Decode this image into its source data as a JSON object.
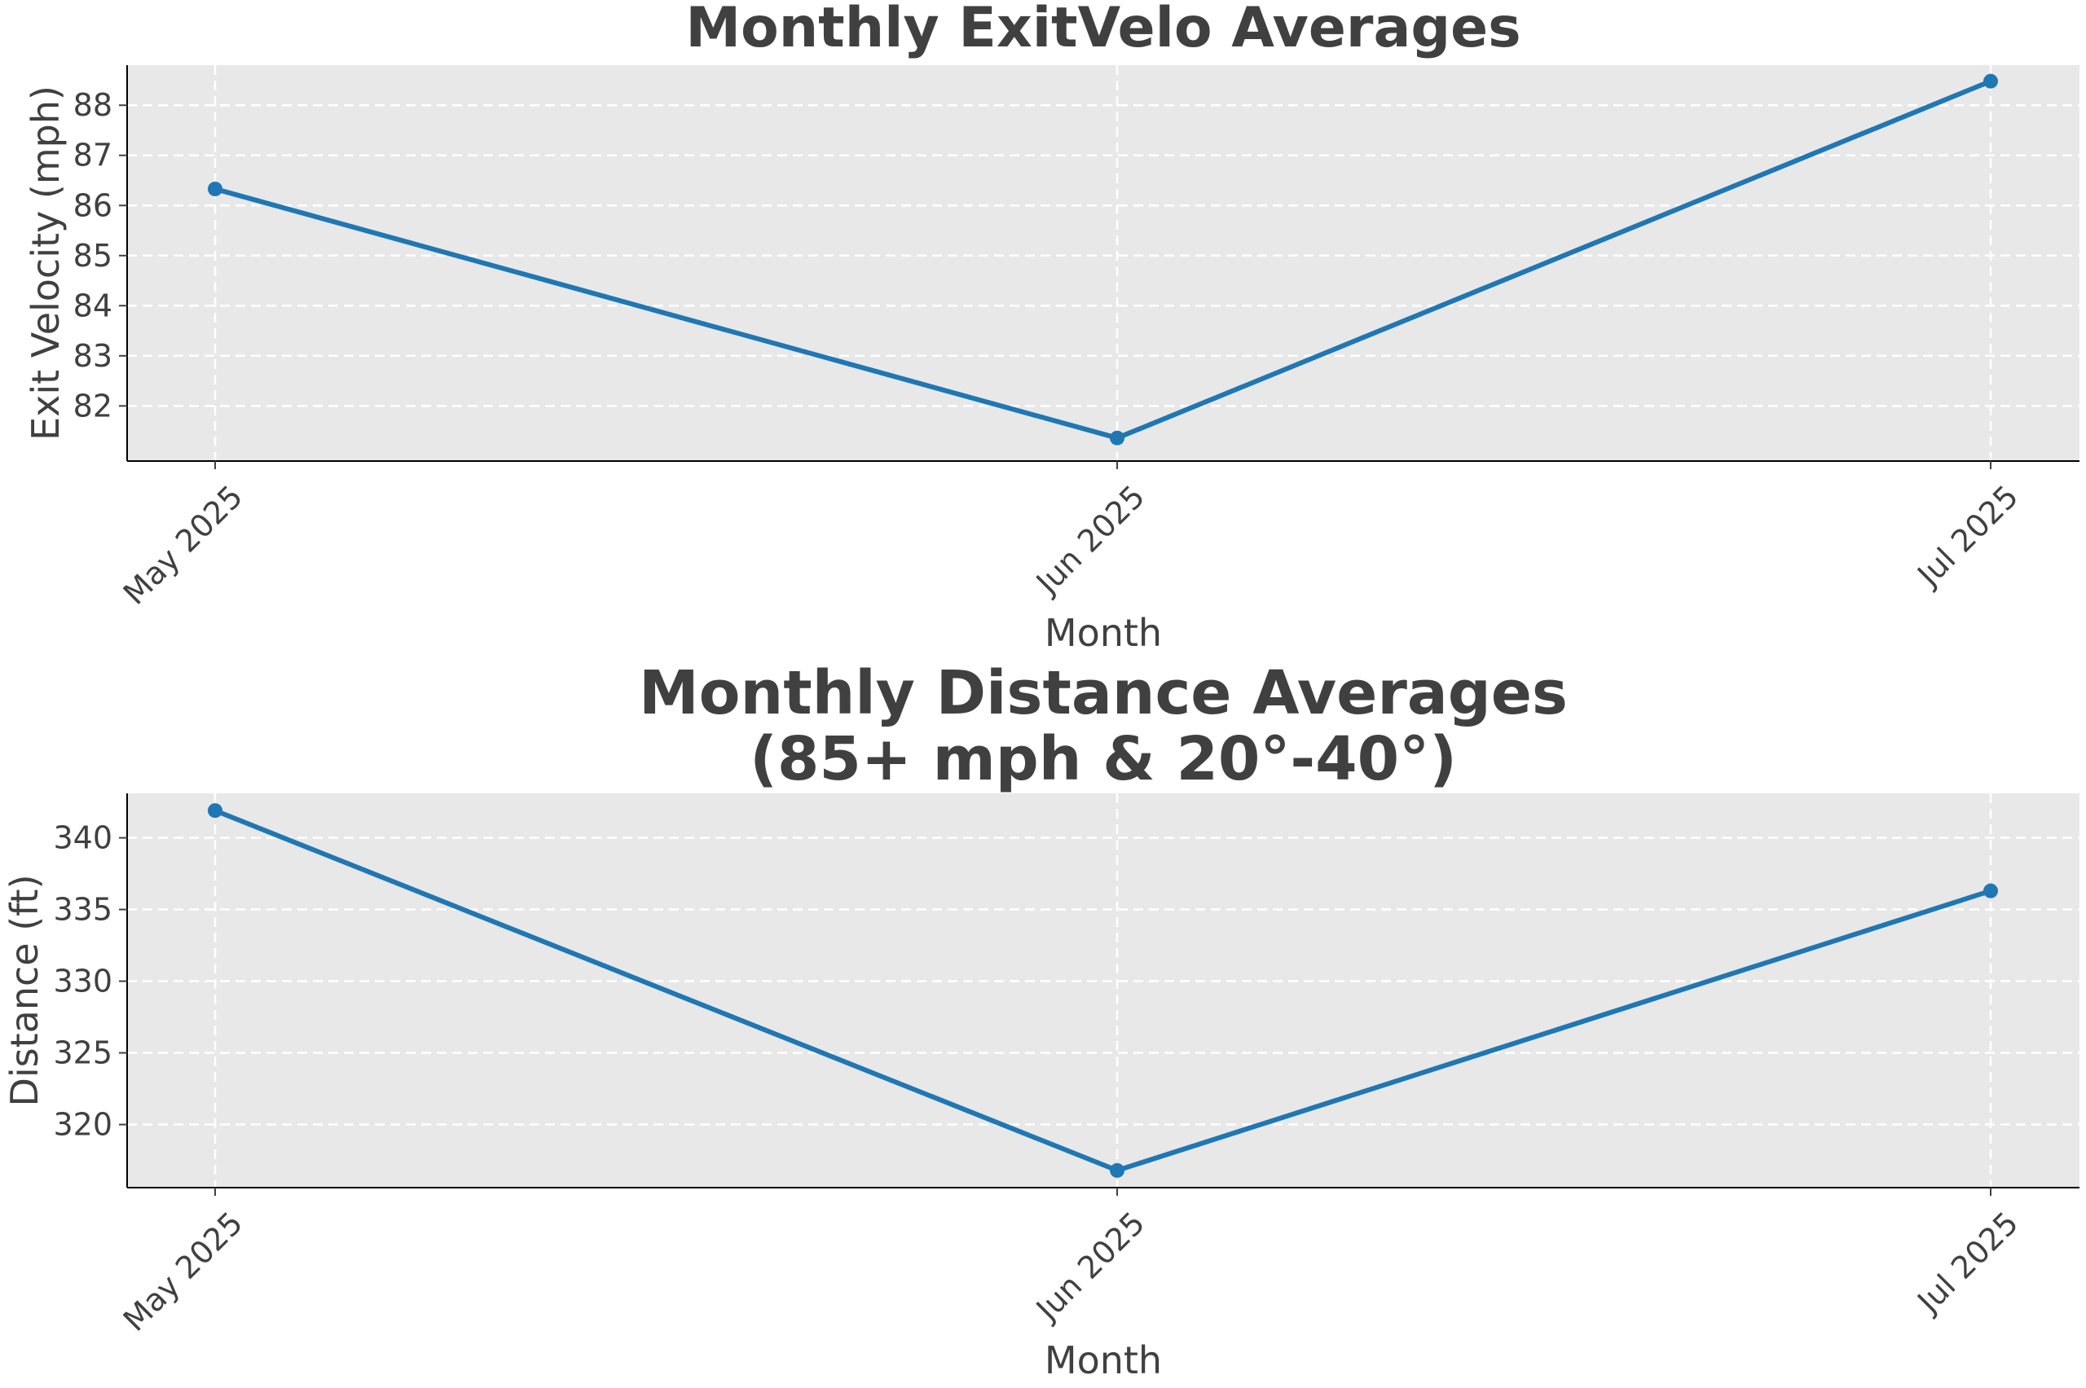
{
  "chart_data": [
    {
      "type": "line",
      "title_lines": [
        "Monthly ExitVelo Averages"
      ],
      "xlabel": "Month",
      "ylabel": "Exit Velocity (mph)",
      "categories": [
        "May 2025",
        "Jun 2025",
        "Jul 2025"
      ],
      "series": [
        {
          "values": [
            86.33,
            81.36,
            88.48
          ]
        }
      ],
      "yticks": [
        82,
        83,
        84,
        85,
        86,
        87,
        88
      ],
      "ylim": [
        80.9,
        88.8
      ],
      "grid": true,
      "colors": {
        "line": "#1f77b4",
        "background": "#e8e8e8",
        "grid": "#ffffff"
      }
    },
    {
      "type": "line",
      "title_lines": [
        "Monthly Distance Averages",
        "(85+ mph & 20°-40°)"
      ],
      "xlabel": "Month",
      "ylabel": "Distance (ft)",
      "categories": [
        "May 2025",
        "Jun 2025",
        "Jul 2025"
      ],
      "series": [
        {
          "values": [
            341.9,
            316.8,
            336.3
          ]
        }
      ],
      "yticks": [
        320,
        325,
        330,
        335,
        340
      ],
      "ylim": [
        315.6,
        343.1
      ],
      "grid": true,
      "colors": {
        "line": "#1f77b4",
        "background": "#e8e8e8",
        "grid": "#ffffff"
      }
    }
  ]
}
